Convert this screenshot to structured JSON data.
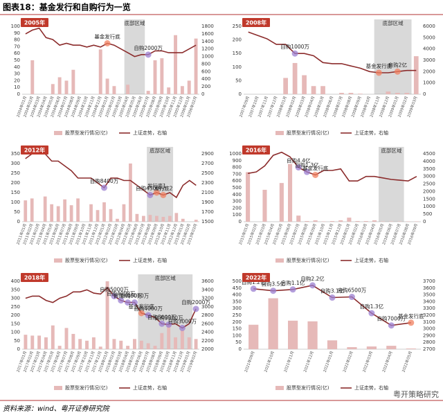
{
  "title": "图表18：基金发行和自购行为一览",
  "source": "资料来源：wind、粤开证券研究院",
  "watermark": "粤开策略研究",
  "chart_data": [
    {
      "type": "bar",
      "title": "2005年",
      "categories": [
        "2004年01月",
        "2004年02月",
        "2004年03月",
        "2004年04月",
        "2004年05月",
        "2004年06月",
        "2004年07月",
        "2004年08月",
        "2004年09月",
        "2004年10月",
        "2004年11月",
        "2004年12月",
        "2005年01月",
        "2005年02月",
        "2005年03月",
        "2005年04月",
        "2005年05月",
        "2005年06月",
        "2005年07月",
        "2005年08月",
        "2005年09月",
        "2005年10月",
        "2005年11月",
        "2005年12月",
        "2006年01月",
        "2006年02月"
      ],
      "series": [
        {
          "name": "股票型发行情况(亿)",
          "color": "#e6b9b8",
          "values": [
            0,
            50,
            0,
            0,
            15,
            25,
            20,
            36,
            0,
            0,
            0,
            66,
            23,
            12,
            0,
            14,
            0,
            0,
            5,
            50,
            53,
            10,
            87,
            12,
            20,
            82
          ]
        },
        {
          "name": "上证走势，右轴",
          "color": "#8b2b2b",
          "axis": "y2",
          "values": [
            1600,
            1700,
            1750,
            1500,
            1450,
            1300,
            1350,
            1300,
            1300,
            1250,
            1300,
            1250,
            1350,
            1300,
            1200,
            1100,
            1000,
            1050,
            1050,
            1150,
            1150,
            1100,
            1100,
            1100,
            1200,
            1300
          ]
        }
      ],
      "ylim": [
        0,
        100
      ],
      "yticks": [
        0,
        10,
        20,
        30,
        40,
        50,
        60,
        70,
        80,
        90,
        100
      ],
      "y2lim": [
        0,
        1800
      ],
      "y2ticks": [
        0,
        200,
        400,
        600,
        800,
        1000,
        1200,
        1400,
        1600,
        1800
      ],
      "shade": {
        "label": "底部区域",
        "from": "2005年04月",
        "to": "2005年06月"
      },
      "annotations": [
        {
          "text": "基金发行底",
          "category": "2005年01月",
          "color": "#f08060"
        },
        {
          "text": "自购2000万",
          "category": "2005年07月",
          "color": "#9b7fd0"
        }
      ]
    },
    {
      "type": "bar",
      "title": "2008年",
      "categories": [
        "2007年09月",
        "2007年10月",
        "2007年11月",
        "2007年12月",
        "2008年01月",
        "2008年02月",
        "2008年03月",
        "2008年04月",
        "2008年05月",
        "2008年06月",
        "2008年07月",
        "2008年08月",
        "2008年09月",
        "2008年10月",
        "2008年11月",
        "2008年12月",
        "2009年01月",
        "2009年02月",
        "2009年03月"
      ],
      "series": [
        {
          "name": "股票型发行情况(亿)",
          "color": "#e6b9b8",
          "values": [
            0,
            0,
            0,
            0,
            60,
            115,
            70,
            30,
            30,
            0,
            5,
            5,
            2,
            0,
            0,
            10,
            5,
            5,
            140
          ]
        },
        {
          "name": "上证走势，右轴",
          "color": "#8b2b2b",
          "axis": "y2",
          "values": [
            5500,
            5200,
            4900,
            4400,
            4400,
            3600,
            3600,
            3400,
            2800,
            2700,
            2700,
            2500,
            2300,
            2000,
            1900,
            1900,
            2000,
            2100,
            2100
          ]
        }
      ],
      "ylim": [
        0,
        250
      ],
      "yticks": [
        0,
        50,
        100,
        150,
        200,
        250
      ],
      "y2lim": [
        0,
        6000
      ],
      "y2ticks": [
        0,
        1000,
        2000,
        3000,
        4000,
        5000,
        6000
      ],
      "shade": {
        "label": "底部区域",
        "from": "2008年11月",
        "to": "2009年02月"
      },
      "annotations": [
        {
          "text": "自购1000万",
          "category": "2008年02月",
          "color": "#9b7fd0"
        },
        {
          "text": "基金发行底",
          "category": "2008年11月",
          "color": "#f08060"
        },
        {
          "text": "自购2亿",
          "category": "2009年01月",
          "color": "#f08060"
        }
      ]
    },
    {
      "type": "bar",
      "title": "2012年",
      "categories": [
        "2011年01月",
        "2011年02月",
        "2011年03月",
        "2011年04月",
        "2011年05月",
        "2011年06月",
        "2011年07月",
        "2011年08月",
        "2011年09月",
        "2011年10月",
        "2011年11月",
        "2011年12月",
        "2012年01月",
        "2012年02月",
        "2012年03月",
        "2012年04月",
        "2012年05月",
        "2012年06月",
        "2012年07月",
        "2012年08月",
        "2012年09月",
        "2012年10月",
        "2012年11月",
        "2012年12月",
        "2013年01月",
        "2013年02月",
        "2013年03月"
      ],
      "series": [
        {
          "name": "股票型发行情况(亿)",
          "color": "#e6b9b8",
          "values": [
            110,
            120,
            0,
            130,
            90,
            80,
            115,
            85,
            120,
            0,
            90,
            60,
            100,
            65,
            15,
            90,
            300,
            40,
            30,
            35,
            30,
            25,
            30,
            45,
            15,
            0,
            10
          ]
        },
        {
          "name": "上证走势，右轴",
          "color": "#8b2b2b",
          "axis": "y2",
          "values": [
            2800,
            2900,
            2900,
            2900,
            2750,
            2750,
            2650,
            2550,
            2400,
            2400,
            2400,
            2300,
            2200,
            2400,
            2400,
            2350,
            2350,
            2250,
            2150,
            2050,
            2100,
            2050,
            2100,
            2000,
            2250,
            2350,
            2250
          ]
        }
      ],
      "ylim": [
        0,
        350
      ],
      "yticks": [
        0,
        50,
        100,
        150,
        200,
        250,
        300,
        350
      ],
      "y2lim": [
        1500,
        2900
      ],
      "y2ticks": [
        1500,
        1700,
        1900,
        2100,
        2300,
        2500,
        2700,
        2900
      ],
      "shade": {
        "label": "底部区域",
        "from": "2012年08月",
        "to": "2012年11月"
      },
      "annotations": [
        {
          "text": "自购8400万",
          "category": "2012年01月",
          "color": "#9b7fd0"
        },
        {
          "text": "自购4300万",
          "category": "2012年08月",
          "color": "#9b7fd0"
        },
        {
          "text": "发行底1",
          "category": "2012年09月",
          "color": "#f08060"
        },
        {
          "text": "发行底2",
          "category": "2012年10月",
          "color": "#f08060"
        }
      ]
    },
    {
      "type": "bar",
      "title": "2016年",
      "categories": [
        "2015年01月",
        "2015年02月",
        "2015年03月",
        "2015年04月",
        "2015年05月",
        "2015年06月",
        "2015年07月",
        "2015年08月",
        "2015年09月",
        "2015年10月",
        "2015年11月",
        "2015年12月",
        "2016年01月",
        "2016年02月",
        "2016年03月",
        "2016年04月",
        "2016年05月",
        "2016年06月",
        "2016年07月",
        "2016年08月",
        "2016年09月"
      ],
      "series": [
        {
          "name": "股票型发行情况(亿)",
          "color": "#e6b9b8",
          "values": [
            730,
            0,
            470,
            0,
            570,
            850,
            90,
            10,
            20,
            5,
            10,
            20,
            60,
            10,
            10,
            20,
            5,
            5,
            5,
            5,
            5
          ]
        },
        {
          "name": "上证走势，右轴",
          "color": "#8b2b2b",
          "axis": "y2",
          "values": [
            3200,
            3300,
            3700,
            4400,
            4600,
            4300,
            3600,
            3300,
            3100,
            3400,
            3400,
            3500,
            2700,
            2700,
            3000,
            3000,
            2900,
            2800,
            2750,
            2700,
            3000
          ]
        }
      ],
      "ylim": [
        0,
        1000
      ],
      "yticks": [
        0,
        100,
        200,
        300,
        400,
        500,
        600,
        700,
        800,
        900,
        1000
      ],
      "y2lim": [
        0,
        4500
      ],
      "y2ticks": [
        0,
        500,
        1000,
        1500,
        2000,
        2500,
        3000,
        3500,
        4000,
        4500
      ],
      "shade": {
        "label": "底部区域",
        "from": "2016年05月",
        "to": "2016年07月"
      },
      "annotations": [
        {
          "text": "自购4.4亿",
          "category": "2015年07月",
          "color": "#9b7fd0"
        },
        {
          "text": "自购1.3亿",
          "category": "2015年08月",
          "color": "#9b7fd0"
        },
        {
          "text": "基金发行底",
          "category": "2015年09月",
          "color": "#f08060"
        }
      ]
    },
    {
      "type": "bar",
      "title": "2018年",
      "categories": [
        "2017年01月",
        "2017年02月",
        "2017年03月",
        "2017年04月",
        "2017年05月",
        "2017年06月",
        "2017年07月",
        "2017年08月",
        "2017年09月",
        "2017年10月",
        "2017年11月",
        "2017年12月",
        "2018年01月",
        "2018年02月",
        "2018年03月",
        "2018年04月",
        "2018年05月",
        "2018年06月",
        "2018年07月",
        "2018年08月",
        "2018年09月",
        "2018年10月",
        "2018年11月",
        "2018年12月",
        "2019年01月",
        "2019年02月"
      ],
      "series": [
        {
          "name": "股票型发行情况(亿)",
          "color": "#e6b9b8",
          "values": [
            85,
            80,
            80,
            70,
            140,
            20,
            125,
            90,
            60,
            50,
            70,
            15,
            400,
            60,
            50,
            20,
            60,
            50,
            35,
            20,
            95,
            140,
            70,
            110,
            70,
            60
          ]
        },
        {
          "name": "上证走势，右轴",
          "color": "#8b2b2b",
          "axis": "y2",
          "values": [
            3200,
            3250,
            3250,
            3150,
            3100,
            3200,
            3250,
            3350,
            3350,
            3400,
            3320,
            3300,
            3450,
            3250,
            3150,
            3100,
            3100,
            2850,
            2800,
            2750,
            2600,
            2580,
            2600,
            2500,
            2600,
            2950
          ]
        }
      ],
      "ylim": [
        0,
        400
      ],
      "yticks": [
        0,
        50,
        100,
        150,
        200,
        250,
        300,
        350,
        400
      ],
      "y2lim": [
        2000,
        3600
      ],
      "y2ticks": [
        2000,
        2200,
        2400,
        2600,
        2800,
        3000,
        3200,
        3400,
        3600
      ],
      "shade": {
        "label": "底部区域",
        "from": "2018年06月",
        "to": "2019年01月"
      },
      "annotations": [
        {
          "text": "自购5000万",
          "category": "2018年02月",
          "color": "#9b7fd0"
        },
        {
          "text": "自购4000万",
          "category": "2018年03月",
          "color": "#9b7fd0"
        },
        {
          "text": "自购4000万",
          "category": "2018年04月",
          "color": "#9b7fd0"
        },
        {
          "text": "自购3000万",
          "category": "2018年05月",
          "color": "#9b7fd0"
        },
        {
          "text": "基金发行底",
          "category": "2018年06月",
          "color": "#f08060"
        },
        {
          "text": "自购4000万",
          "category": "2018年07月",
          "color": "#9b7fd0"
        },
        {
          "text": "自购5000万",
          "category": "2018年09月",
          "color": "#9b7fd0"
        },
        {
          "text": "自购3300万",
          "category": "2018年10月",
          "color": "#9b7fd0"
        },
        {
          "text": "自购3000万",
          "category": "2018年12月",
          "color": "#9b7fd0"
        },
        {
          "text": "自购2000万",
          "category": "2019年02月",
          "color": "#9b7fd0"
        }
      ]
    },
    {
      "type": "bar",
      "title": "2022年",
      "categories": [
        "2021年09月",
        "2021年10月",
        "2021年11月",
        "2021年12月",
        "2022年01月",
        "2022年02月",
        "2022年03月",
        "2022年04月",
        "2022年05月"
      ],
      "series": [
        {
          "name": "股票型发行情况(亿)",
          "color": "#e6b9b8",
          "values": [
            180,
            375,
            210,
            205,
            65,
            15,
            20,
            25,
            5
          ]
        },
        {
          "name": "上证走势，右轴",
          "color": "#8b2b2b",
          "axis": "y2",
          "values": [
            3590,
            3560,
            3580,
            3640,
            3460,
            3470,
            3230,
            3050,
            3090
          ]
        }
      ],
      "ylim": [
        0,
        500
      ],
      "yticks": [
        0,
        50,
        100,
        150,
        200,
        250,
        300,
        350,
        400,
        450,
        500
      ],
      "y2lim": [
        2700,
        3700
      ],
      "y2ticks": [
        2700,
        2800,
        2900,
        3000,
        3100,
        3200,
        3300,
        3400,
        3500,
        3600,
        3700
      ],
      "annotations": [
        {
          "text": "自购1.2亿",
          "category": "2021年09月",
          "color": "#9b7fd0"
        },
        {
          "text": "自购3.5亿",
          "category": "2021年10月",
          "color": "#9b7fd0"
        },
        {
          "text": "自购1.1亿",
          "category": "2021年11月",
          "color": "#9b7fd0"
        },
        {
          "text": "自购2.2亿",
          "category": "2021年12月",
          "color": "#9b7fd0"
        },
        {
          "text": "自购3.1亿",
          "category": "2022年01月",
          "color": "#9b7fd0"
        },
        {
          "text": "自购6500万",
          "category": "2022年02月",
          "color": "#9b7fd0"
        },
        {
          "text": "自购1.3亿",
          "category": "2022年03月",
          "color": "#9b7fd0"
        },
        {
          "text": "自购7000万",
          "category": "2022年04月",
          "color": "#9b7fd0"
        },
        {
          "text": "基金发行底",
          "category": "2022年05月",
          "color": "#f08060"
        }
      ]
    }
  ]
}
